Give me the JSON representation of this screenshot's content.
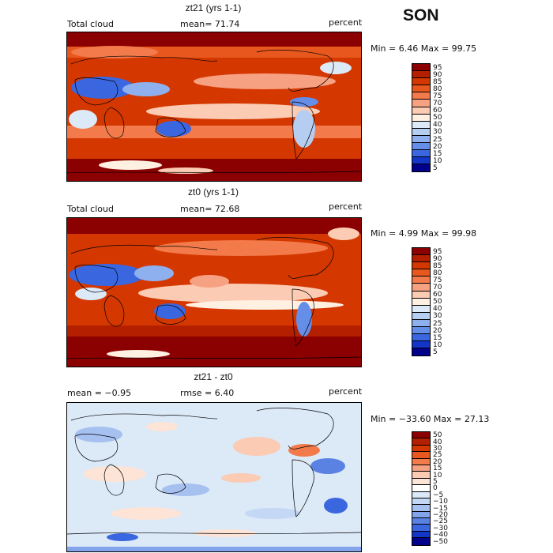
{
  "season": "SON",
  "panels": [
    {
      "title": "zt21 (yrs 1-1)",
      "left_label": "Total cloud",
      "center_label": "mean=  71.74",
      "right_label": "percent",
      "minmax": "Min =    6.46  Max =   99.75",
      "colorbar": {
        "labels": [
          "95",
          "90",
          "85",
          "80",
          "75",
          "70",
          "60",
          "50",
          "40",
          "30",
          "25",
          "20",
          "15",
          "10",
          "5"
        ],
        "colors": [
          "#8b0000",
          "#b41f00",
          "#d43800",
          "#e8581e",
          "#f37a4a",
          "#f7a183",
          "#fbcbb3",
          "#fff0e2",
          "#dce9f7",
          "#b6cdf2",
          "#8fb0ee",
          "#648ee8",
          "#3a66e0",
          "#1336c8",
          "#00008b"
        ]
      }
    },
    {
      "title": "zt0 (yrs 1-1)",
      "left_label": "Total cloud",
      "center_label": "mean=  72.68",
      "right_label": "percent",
      "minmax": "Min =    4.99  Max =   99.98",
      "colorbar": {
        "labels": [
          "95",
          "90",
          "85",
          "80",
          "75",
          "70",
          "60",
          "50",
          "40",
          "30",
          "25",
          "20",
          "15",
          "10",
          "5"
        ],
        "colors": [
          "#8b0000",
          "#b41f00",
          "#d43800",
          "#e8581e",
          "#f37a4a",
          "#f7a183",
          "#fbcbb3",
          "#fff0e2",
          "#dce9f7",
          "#b6cdf2",
          "#8fb0ee",
          "#648ee8",
          "#3a66e0",
          "#1336c8",
          "#00008b"
        ]
      }
    },
    {
      "title": "zt21 - zt0",
      "left_label": "mean =  −0.95",
      "center_label": "rmse =   6.40",
      "right_label": "percent",
      "minmax": "Min = −33.60  Max =   27.13",
      "colorbar": {
        "labels": [
          "50",
          "40",
          "30",
          "25",
          "20",
          "15",
          "10",
          "5",
          "0",
          "−5",
          "−10",
          "−15",
          "−20",
          "−25",
          "−30",
          "−40",
          "−50"
        ],
        "colors": [
          "#8b0000",
          "#b41f00",
          "#d43800",
          "#e8581e",
          "#f37a4a",
          "#f7a183",
          "#fbcbb3",
          "#fde4d6",
          "#ffffff",
          "#dce9f7",
          "#c4d8f5",
          "#a6c0f0",
          "#83a3ea",
          "#5a82e3",
          "#3a66e0",
          "#1336c8",
          "#00008b"
        ]
      }
    }
  ]
}
